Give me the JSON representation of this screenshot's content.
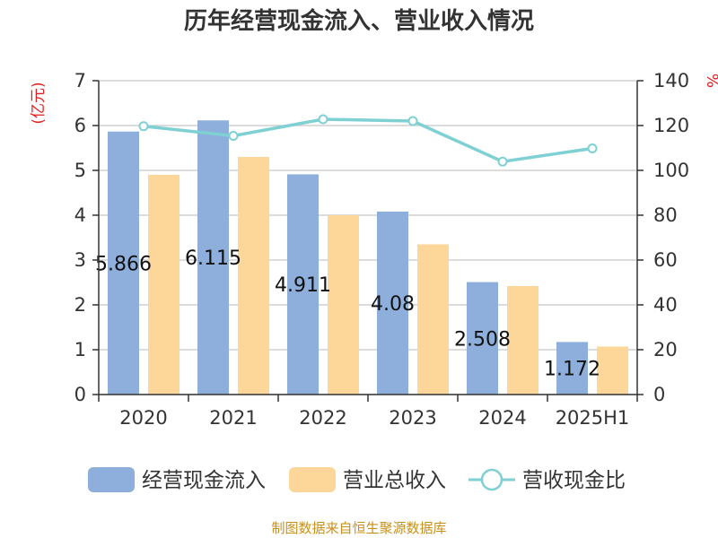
{
  "chart_data": {
    "type": "bar",
    "title": "历年经营现金流入、营业收入情况",
    "categories": [
      "2020",
      "2021",
      "2022",
      "2023",
      "2024",
      "2025H1"
    ],
    "left_axis": {
      "unit": "(亿元)",
      "ylim": [
        0,
        7
      ],
      "ticks": [
        0,
        1,
        2,
        3,
        4,
        5,
        6,
        7
      ]
    },
    "right_axis": {
      "unit": "%",
      "ylim": [
        0,
        140
      ],
      "ticks": [
        0,
        20,
        40,
        60,
        80,
        100,
        120,
        140
      ]
    },
    "series": [
      {
        "name": "经营现金流入",
        "type": "bar",
        "axis": "left",
        "color": "#8eaedb",
        "values": [
          5.866,
          6.115,
          4.911,
          4.08,
          2.508,
          1.172
        ],
        "labels": [
          "5.866",
          "6.115",
          "4.911",
          "4.08",
          "2.508",
          "1.172"
        ]
      },
      {
        "name": "营业总收入",
        "type": "bar",
        "axis": "left",
        "color": "#fdd799",
        "values": [
          4.9,
          5.3,
          4.0,
          3.35,
          2.42,
          1.07
        ]
      },
      {
        "name": "营收现金比",
        "type": "line",
        "axis": "right",
        "color": "#7fd0d3",
        "values": [
          119.7,
          115.4,
          122.8,
          122.0,
          103.9,
          109.8
        ]
      }
    ],
    "grid": true,
    "legend_position": "bottom",
    "source": "制图数据来自恒生聚源数据库"
  }
}
